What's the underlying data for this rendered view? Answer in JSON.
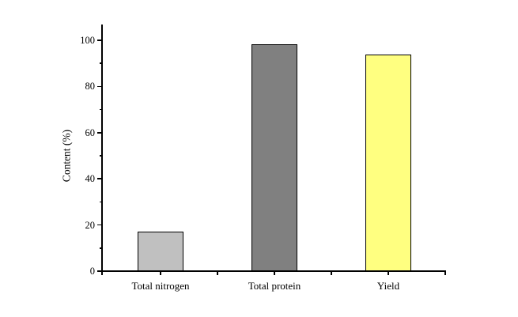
{
  "chart_data": {
    "type": "bar",
    "title": "",
    "xlabel": "",
    "ylabel": "Content (%)",
    "categories": [
      "Total nitrogen",
      "Total protein",
      "Yield"
    ],
    "values": [
      17,
      98.4,
      94
    ],
    "bar_colors": [
      "#c0c0c0",
      "#808080",
      "#ffff80"
    ],
    "bar_border_color": "#000000",
    "axis_color": "#000000",
    "ylim": [
      0,
      107
    ],
    "yticks_major": [
      0,
      20,
      40,
      60,
      80,
      100
    ],
    "yticks_minor": [
      10,
      30,
      50,
      70,
      90
    ],
    "ytick_labels": [
      "0",
      "20",
      "40",
      "60",
      "80",
      "100"
    ],
    "grid": false,
    "legend": false,
    "background_color": "#ffffff"
  }
}
